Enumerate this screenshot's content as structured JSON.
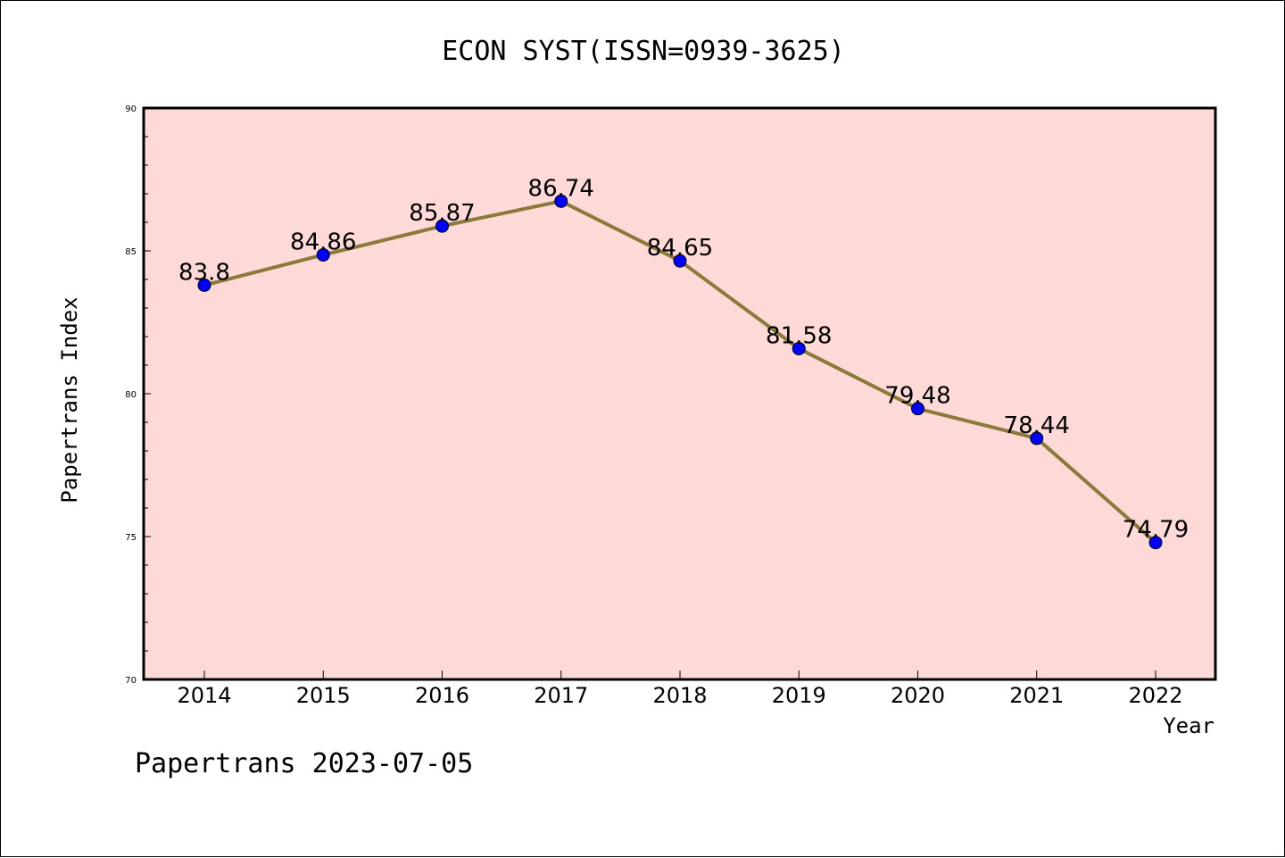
{
  "chart_data": {
    "type": "line",
    "title": "ECON SYST(ISSN=0939-3625)",
    "xlabel": "Year",
    "ylabel": "Papertrans Index",
    "categories": [
      "2014",
      "2015",
      "2016",
      "2017",
      "2018",
      "2019",
      "2020",
      "2021",
      "2022"
    ],
    "values": [
      83.8,
      84.86,
      85.87,
      86.74,
      84.65,
      81.58,
      79.48,
      78.44,
      74.79
    ],
    "value_labels": [
      "83.8",
      "84.86",
      "85.87",
      "86.74",
      "84.65",
      "81.58",
      "79.48",
      "78.44",
      "74.79"
    ],
    "ylim": [
      70,
      90
    ],
    "yticks": [
      "70",
      "75",
      "80",
      "85",
      "90"
    ],
    "grid": false,
    "colors": {
      "plot_background": "#fddad8",
      "line": "#8b7a3a",
      "marker": "#0000ff"
    }
  },
  "footer": "Papertrans 2023-07-05"
}
